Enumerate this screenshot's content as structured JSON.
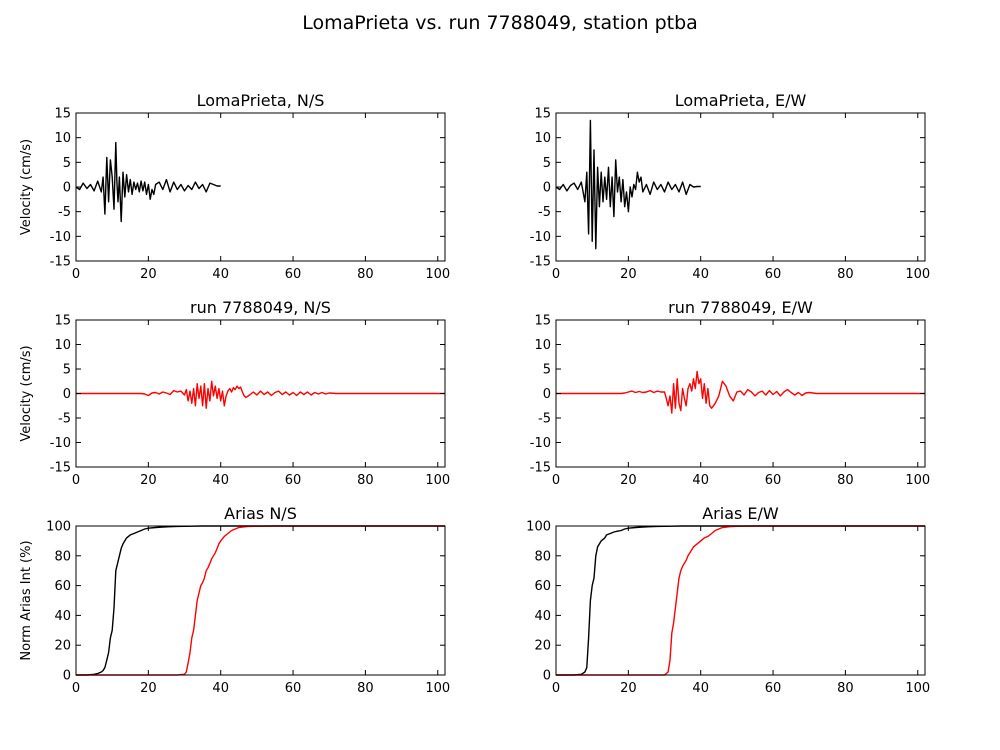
{
  "figure": {
    "title": "LomaPrieta vs. run 7788049, station ptba"
  },
  "chart_data": [
    {
      "id": "loma-ns",
      "type": "line",
      "title": "LomaPrieta, N/S",
      "ylabel": "Velocity (cm/s)",
      "xlabel": "",
      "xlim": [
        0,
        102
      ],
      "ylim": [
        -15,
        15
      ],
      "xticks": [
        0,
        20,
        40,
        60,
        80,
        100
      ],
      "yticks": [
        -15,
        -10,
        -5,
        0,
        5,
        10,
        15
      ],
      "grid": false,
      "series": [
        {
          "color": "#000000",
          "x": [
            0,
            1,
            2,
            3,
            4,
            5,
            6,
            7,
            7.5,
            8,
            8.5,
            9,
            9.5,
            10,
            10.5,
            11,
            11.3,
            11.6,
            12,
            12.5,
            13,
            13.5,
            14,
            14.5,
            15,
            15.5,
            16,
            16.5,
            17,
            17.5,
            18,
            18.5,
            19,
            19.5,
            20,
            20.5,
            21,
            21.5,
            22,
            23,
            24,
            25,
            26,
            27,
            28,
            29,
            30,
            31,
            32,
            33,
            34,
            35,
            36,
            37,
            38,
            39,
            40
          ],
          "y": [
            0,
            -0.5,
            0.8,
            -0.3,
            0.5,
            -0.8,
            1.2,
            -1,
            2,
            -5.5,
            6,
            -3,
            5.5,
            2,
            -4.5,
            9,
            1,
            -3,
            2,
            -7,
            3,
            -2,
            2.5,
            -1,
            1.5,
            -1.5,
            1,
            -0.5,
            0.8,
            -1,
            1.2,
            -0.8,
            1,
            -1.5,
            0.5,
            -2.5,
            -0.5,
            -1.5,
            0.5,
            1,
            -0.5,
            1.5,
            -1,
            1,
            -0.5,
            0.5,
            -0.8,
            0.3,
            -0.5,
            1,
            -0.3,
            0.5,
            -1,
            0.8,
            0.5,
            0.2,
            0.2
          ]
        }
      ]
    },
    {
      "id": "loma-ew",
      "type": "line",
      "title": "LomaPrieta, E/W",
      "ylabel": "",
      "xlabel": "",
      "xlim": [
        0,
        102
      ],
      "ylim": [
        -15,
        15
      ],
      "xticks": [
        0,
        20,
        40,
        60,
        80,
        100
      ],
      "yticks": [
        -15,
        -10,
        -5,
        0,
        5,
        10,
        15
      ],
      "grid": false,
      "series": [
        {
          "color": "#000000",
          "x": [
            0,
            1,
            2,
            3,
            4,
            5,
            6,
            7,
            7.5,
            8,
            8.5,
            9,
            9.5,
            10,
            10.5,
            11,
            11.5,
            12,
            12.5,
            13,
            13.5,
            14,
            14.5,
            15,
            15.5,
            16,
            16.5,
            17,
            17.5,
            18,
            18.5,
            19,
            19.5,
            20,
            20.5,
            21,
            21.5,
            22,
            22.5,
            23,
            23.5,
            24,
            25,
            26,
            27,
            28,
            29,
            30,
            31,
            32,
            33,
            34,
            35,
            36,
            37,
            38,
            39,
            40
          ],
          "y": [
            0,
            -0.5,
            0.5,
            -0.8,
            0.3,
            0.8,
            -0.5,
            1,
            -1,
            -3,
            3,
            -9.5,
            13.5,
            -11,
            7.5,
            -12.5,
            4,
            -4,
            3,
            -3,
            2,
            -2.5,
            4,
            -4,
            2,
            -6,
            5.5,
            -1,
            2,
            -3,
            1.5,
            -4,
            -1,
            -5,
            0,
            -2,
            0.5,
            -0.5,
            3,
            1,
            2,
            -1,
            0.5,
            -1.5,
            1,
            -0.5,
            0.5,
            -1,
            1,
            -0.5,
            0.5,
            -1,
            1,
            -1.5,
            0.5,
            0,
            0.1,
            0.1
          ]
        }
      ]
    },
    {
      "id": "run-ns",
      "type": "line",
      "title": "run 7788049, N/S",
      "ylabel": "Velocity (cm/s)",
      "xlabel": "",
      "xlim": [
        0,
        102
      ],
      "ylim": [
        -15,
        15
      ],
      "xticks": [
        0,
        20,
        40,
        60,
        80,
        100
      ],
      "yticks": [
        -15,
        -10,
        -5,
        0,
        5,
        10,
        15
      ],
      "grid": false,
      "series": [
        {
          "color": "#ff0000",
          "x": [
            0,
            10,
            18,
            19,
            20,
            21,
            22,
            23,
            24,
            25,
            26,
            27,
            28,
            29,
            30,
            30.5,
            31,
            31.5,
            32,
            32.5,
            33,
            33.5,
            34,
            34.5,
            35,
            35.5,
            36,
            36.5,
            37,
            37.5,
            38,
            38.5,
            39,
            39.5,
            40,
            40.5,
            41,
            41.5,
            42,
            42.5,
            43,
            43.5,
            44,
            44.5,
            45,
            45.5,
            46,
            46.5,
            47,
            48,
            49,
            50,
            51,
            52,
            53,
            54,
            55,
            56,
            57,
            58,
            59,
            60,
            61,
            62,
            63,
            64,
            65,
            66,
            67,
            68,
            69,
            70,
            72,
            75,
            80,
            90,
            102
          ],
          "y": [
            0,
            0,
            0,
            -0.1,
            -0.4,
            0.1,
            0.2,
            -0.1,
            0.3,
            0.1,
            -0.2,
            0.6,
            0.3,
            0.5,
            -0.3,
            0.8,
            -1.5,
            0.5,
            -2,
            1,
            -2.5,
            2,
            -1,
            1.5,
            -2.5,
            2,
            -3,
            1,
            -1.5,
            2.5,
            -0.5,
            1.5,
            -1,
            1,
            -1.5,
            0.5,
            -2.5,
            -0.5,
            0.5,
            1,
            0.3,
            1.2,
            0.8,
            1.5,
            1,
            1.3,
            0.3,
            -0.5,
            -0.8,
            -0.3,
            0.3,
            -0.3,
            0.5,
            -0.2,
            0.3,
            -0.4,
            0.2,
            0.5,
            -0.2,
            0.3,
            -0.3,
            0.2,
            -0.4,
            0.3,
            -0.2,
            0.3,
            -0.3,
            0.2,
            -0.1,
            0.2,
            -0.1,
            0.1,
            0,
            0,
            0,
            0,
            0
          ]
        }
      ]
    },
    {
      "id": "run-ew",
      "type": "line",
      "title": "run 7788049, E/W",
      "ylabel": "",
      "xlabel": "",
      "xlim": [
        0,
        102
      ],
      "ylim": [
        -15,
        15
      ],
      "xticks": [
        0,
        20,
        40,
        60,
        80,
        100
      ],
      "yticks": [
        -15,
        -10,
        -5,
        0,
        5,
        10,
        15
      ],
      "grid": false,
      "series": [
        {
          "color": "#ff0000",
          "x": [
            0,
            10,
            18,
            19,
            20,
            21,
            22,
            23,
            24,
            25,
            26,
            27,
            28,
            29,
            30,
            30.5,
            31,
            31.5,
            32,
            32.5,
            33,
            33.5,
            34,
            34.5,
            35,
            35.5,
            36,
            36.5,
            37,
            37.5,
            38,
            38.5,
            39,
            39.5,
            40,
            40.5,
            41,
            41.5,
            42,
            42.5,
            43,
            44,
            45,
            46,
            47,
            48,
            49,
            50,
            51,
            52,
            53,
            54,
            55,
            56,
            57,
            58,
            59,
            60,
            61,
            62,
            63,
            64,
            65,
            66,
            67,
            68,
            69,
            70,
            72,
            75,
            80,
            90,
            102
          ],
          "y": [
            0,
            0,
            0,
            0.1,
            0.3,
            0.5,
            0.2,
            0.4,
            0.2,
            0.3,
            0.6,
            0.2,
            0.5,
            0.3,
            0.3,
            -1,
            -2.5,
            -0.5,
            -4,
            2,
            -3,
            3,
            -2,
            -3.5,
            1,
            -1,
            -2.5,
            1,
            2,
            0.5,
            3,
            1,
            4.5,
            2,
            3,
            -1,
            2,
            -2,
            1,
            -2.5,
            -3,
            -2,
            -0.5,
            2.5,
            1.5,
            -0.5,
            -1.5,
            0.3,
            0.5,
            -0.3,
            0.8,
            0.3,
            -0.5,
            0.2,
            0.5,
            -0.3,
            0.6,
            -0.2,
            0.4,
            -0.5,
            0.3,
            0.8,
            0.2,
            -0.3,
            0.2,
            -0.4,
            0.1,
            0.2,
            0,
            0,
            0,
            0,
            0
          ]
        }
      ]
    },
    {
      "id": "arias-ns",
      "type": "line",
      "title": "Arias N/S",
      "ylabel": "Norm Arias Int (%)",
      "xlabel": "",
      "xlim": [
        0,
        102
      ],
      "ylim": [
        0,
        100
      ],
      "xticks": [
        0,
        20,
        40,
        60,
        80,
        100
      ],
      "yticks": [
        0,
        20,
        40,
        60,
        80,
        100
      ],
      "grid": false,
      "series": [
        {
          "color": "#000000",
          "x": [
            0,
            3,
            5,
            6,
            7,
            7.5,
            8,
            8.5,
            9,
            9.5,
            10,
            10.5,
            11,
            11.5,
            12,
            12.5,
            13,
            13.5,
            14,
            15,
            16,
            17,
            18,
            19,
            20,
            22,
            24,
            26,
            28,
            30,
            35,
            40,
            102
          ],
          "y": [
            0,
            0,
            0.5,
            1,
            2,
            3,
            5,
            10,
            15,
            25,
            30,
            45,
            70,
            75,
            80,
            85,
            88,
            90,
            92,
            94,
            95,
            96,
            97,
            98,
            98.5,
            99,
            99.3,
            99.5,
            99.7,
            99.8,
            100,
            100,
            100
          ]
        },
        {
          "color": "#ff0000",
          "x": [
            0,
            28,
            30,
            30.5,
            31,
            31.5,
            32,
            32.5,
            33,
            33.5,
            34,
            34.5,
            35,
            35.5,
            36,
            36.5,
            37,
            37.5,
            38,
            38.5,
            39,
            39.5,
            40,
            41,
            42,
            43,
            44,
            45,
            46,
            47,
            48,
            50,
            55,
            60,
            102
          ],
          "y": [
            0,
            0,
            0.5,
            2,
            8,
            15,
            25,
            30,
            40,
            50,
            55,
            60,
            62,
            65,
            70,
            72,
            75,
            78,
            80,
            82,
            85,
            88,
            90,
            93,
            95,
            97,
            98,
            99,
            99.3,
            99.5,
            99.7,
            99.8,
            100,
            100,
            100
          ]
        }
      ]
    },
    {
      "id": "arias-ew",
      "type": "line",
      "title": "Arias E/W",
      "ylabel": "",
      "xlabel": "",
      "xlim": [
        0,
        102
      ],
      "ylim": [
        0,
        100
      ],
      "xticks": [
        0,
        20,
        40,
        60,
        80,
        100
      ],
      "yticks": [
        0,
        20,
        40,
        60,
        80,
        100
      ],
      "grid": false,
      "series": [
        {
          "color": "#000000",
          "x": [
            0,
            5,
            7,
            8,
            8.5,
            9,
            9.5,
            10,
            10.5,
            11,
            11.5,
            12,
            12.5,
            13,
            13.5,
            14,
            15,
            16,
            17,
            18,
            19,
            20,
            22,
            24,
            26,
            28,
            30,
            35,
            40,
            102
          ],
          "y": [
            0,
            0,
            0.5,
            2,
            5,
            25,
            50,
            60,
            65,
            80,
            86,
            88,
            90,
            91,
            92,
            94,
            95,
            96,
            96.5,
            97,
            98,
            98.5,
            99,
            99.3,
            99.5,
            99.7,
            99.8,
            100,
            100,
            100
          ]
        },
        {
          "color": "#ff0000",
          "x": [
            0,
            30,
            31,
            31.5,
            32,
            32.5,
            33,
            33.5,
            34,
            34.5,
            35,
            35.5,
            36,
            36.5,
            37,
            38,
            39,
            40,
            41,
            42,
            43,
            44,
            45,
            46,
            48,
            50,
            55,
            60,
            102
          ],
          "y": [
            0,
            0,
            2,
            10,
            28,
            35,
            45,
            55,
            65,
            70,
            73,
            75,
            77,
            80,
            82,
            86,
            88,
            90,
            92,
            93,
            95,
            97,
            98,
            99,
            99.5,
            99.8,
            100,
            100,
            100
          ]
        }
      ]
    }
  ]
}
